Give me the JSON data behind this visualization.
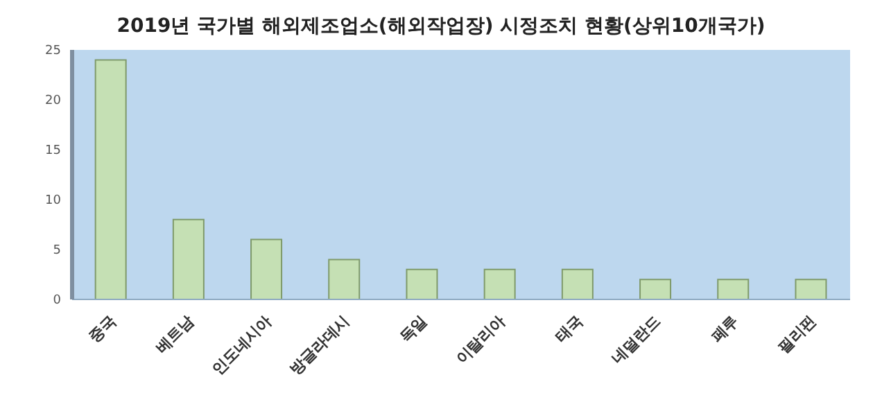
{
  "chart_data": {
    "type": "bar",
    "title": "2019년 국가별 해외제조업소(해외작업장) 시정조치 현황(상위10개국가)",
    "categories": [
      "중국",
      "베트남",
      "인도네시아",
      "방글라데시",
      "독일",
      "이탈리아",
      "태국",
      "네덜란드",
      "페루",
      "필리핀"
    ],
    "values": [
      24,
      8,
      6,
      4,
      3,
      3,
      3,
      2,
      2,
      2
    ],
    "color": "#c5e0b4",
    "ylim": [
      0,
      25
    ],
    "yticks": [
      0,
      5,
      10,
      15,
      20,
      25
    ]
  }
}
